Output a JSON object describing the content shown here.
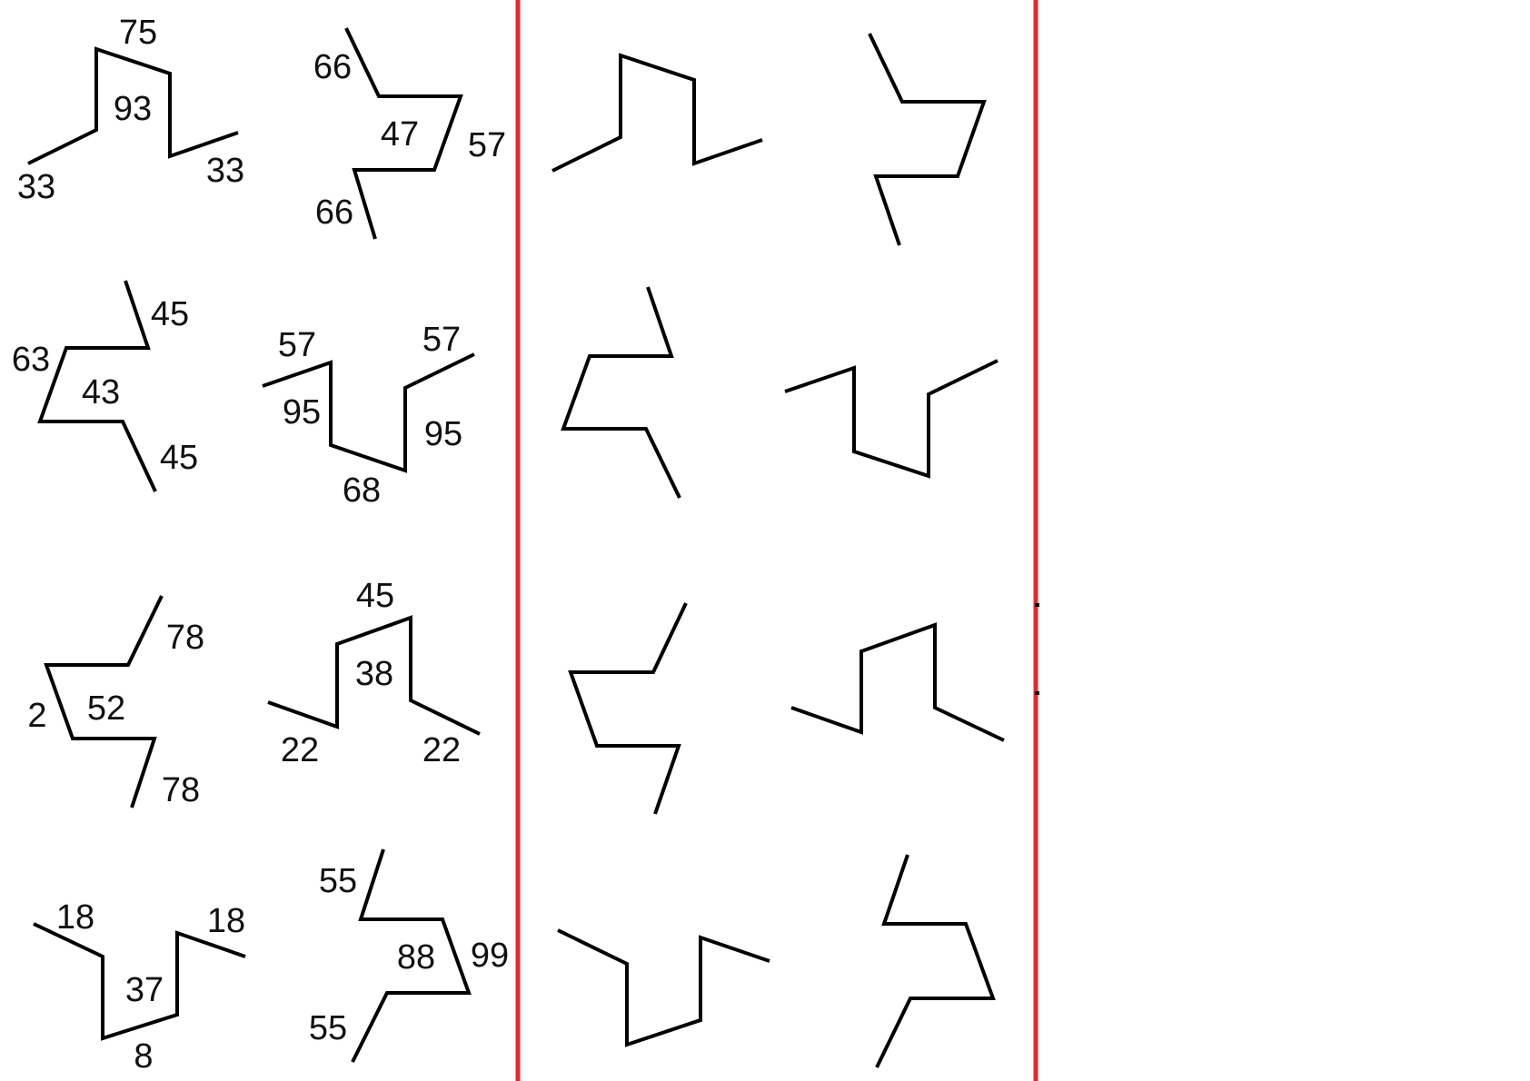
{
  "colors": {
    "divider": "#e8262b",
    "stroke": "#000000",
    "text": "#111111"
  },
  "labeled_figures": [
    {
      "id": "fig-1",
      "labels": [
        "75",
        "93",
        "33",
        "33"
      ]
    },
    {
      "id": "fig-2",
      "labels": [
        "66",
        "47",
        "57",
        "66"
      ]
    },
    {
      "id": "fig-3",
      "labels": [
        "45",
        "63",
        "43",
        "45"
      ]
    },
    {
      "id": "fig-4",
      "labels": [
        "57",
        "57",
        "95",
        "95",
        "68"
      ]
    },
    {
      "id": "fig-5",
      "labels": [
        "78",
        "2",
        "52",
        "78"
      ]
    },
    {
      "id": "fig-6",
      "labels": [
        "45",
        "38",
        "22",
        "22"
      ]
    },
    {
      "id": "fig-7",
      "labels": [
        "18",
        "18",
        "37",
        "8"
      ]
    },
    {
      "id": "fig-8",
      "labels": [
        "55",
        "88",
        "99",
        "55"
      ]
    }
  ],
  "blank_figures": [
    "fig-1",
    "fig-2",
    "fig-3",
    "fig-4",
    "fig-5",
    "fig-6",
    "fig-7",
    "fig-8"
  ]
}
